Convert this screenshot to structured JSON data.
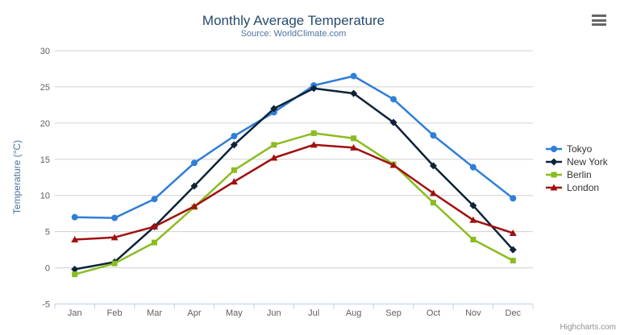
{
  "chart_data": {
    "type": "line",
    "title": "Monthly Average Temperature",
    "subtitle": "Source: WorldClimate.com",
    "xlabel": "",
    "ylabel": "Temperature (°C)",
    "ylim": [
      -5,
      30
    ],
    "y_tick_interval": 5,
    "y_ticks": [
      30,
      25,
      20,
      15,
      10,
      5,
      0,
      -5
    ],
    "categories": [
      "Jan",
      "Feb",
      "Mar",
      "Apr",
      "May",
      "Jun",
      "Jul",
      "Aug",
      "Sep",
      "Oct",
      "Nov",
      "Dec"
    ],
    "grid": true,
    "legend_position": "right",
    "series": [
      {
        "name": "Tokyo",
        "color": "#2f7ed8",
        "marker": "circle",
        "values": [
          7.0,
          6.9,
          9.5,
          14.5,
          18.2,
          21.5,
          25.2,
          26.5,
          23.3,
          18.3,
          13.9,
          9.6
        ]
      },
      {
        "name": "New York",
        "color": "#0d233a",
        "marker": "diamond",
        "values": [
          -0.2,
          0.8,
          5.7,
          11.3,
          17.0,
          22.0,
          24.8,
          24.1,
          20.1,
          14.1,
          8.6,
          2.5
        ]
      },
      {
        "name": "Berlin",
        "color": "#8bbc21",
        "marker": "square",
        "values": [
          -0.9,
          0.6,
          3.5,
          8.4,
          13.5,
          17.0,
          18.6,
          17.9,
          14.3,
          9.0,
          3.9,
          1.0
        ]
      },
      {
        "name": "London",
        "color": "#a01010",
        "marker": "triangle",
        "values": [
          3.9,
          4.2,
          5.7,
          8.5,
          11.9,
          15.2,
          17.0,
          16.6,
          14.2,
          10.3,
          6.6,
          4.8
        ]
      }
    ]
  },
  "credits": "Highcharts.com",
  "export_menu_icon": "hamburger-icon",
  "colors": {
    "title": "#274b6d",
    "subtitle": "#4d759e",
    "axis_labels": "#606060",
    "axis_title": "#4d759e",
    "grid": "#d0d0d0",
    "axis_line": "#c0d0e0",
    "legend_text": "#333333",
    "credits": "#909090"
  }
}
